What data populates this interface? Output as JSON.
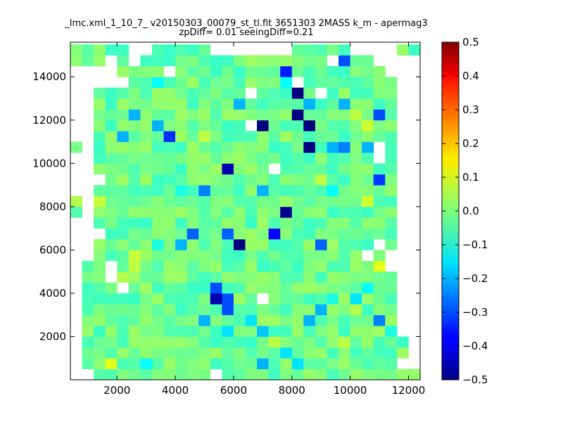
{
  "chart_data": {
    "type": "heatmap",
    "title": "_lmc.xml_1_10_7_ v20150303_00079_st_tl.fit 3651303 2MASS k_m - apermag3",
    "subtitle": "zpDiff= 0.01 seeingDiff=0.21",
    "xlim": [
      400,
      12400
    ],
    "ylim": [
      0,
      15600
    ],
    "x_ticks": [
      2000,
      4000,
      6000,
      8000,
      10000,
      12000
    ],
    "y_ticks": [
      2000,
      4000,
      6000,
      8000,
      10000,
      12000,
      14000
    ],
    "colorbar": {
      "colormap": "jet",
      "range": [
        -0.5,
        0.5
      ],
      "ticks": [
        "0.5",
        "0.4",
        "0.3",
        "0.2",
        "0.1",
        "0.0",
        "−0.1",
        "−0.2",
        "−0.3",
        "−0.4",
        "−0.5"
      ],
      "tick_values": [
        0.5,
        0.4,
        0.3,
        0.2,
        0.1,
        0.0,
        -0.1,
        -0.2,
        -0.3,
        -0.4,
        -0.5
      ]
    },
    "grid": {
      "x0": 400,
      "x_step": 400,
      "n_cols": 30,
      "y0": 0,
      "y_step": 500,
      "n_rows": 31,
      "background_value": -0.02,
      "background_variation": 0.05,
      "missing_cells": [
        [
          1,
          0
        ],
        [
          12,
          0
        ],
        [
          29,
          1
        ],
        [
          28,
          1
        ],
        [
          30,
          20
        ],
        [
          30,
          0
        ],
        [
          30,
          1
        ],
        [
          0,
          0
        ],
        [
          0,
          1
        ],
        [
          0,
          2
        ],
        [
          0,
          3
        ],
        [
          0,
          4
        ],
        [
          0,
          5
        ],
        [
          0,
          6
        ],
        [
          0,
          7
        ],
        [
          0,
          8
        ],
        [
          0,
          9
        ],
        [
          0,
          10
        ],
        [
          0,
          11
        ],
        [
          0,
          12
        ],
        [
          0,
          13
        ],
        [
          0,
          14
        ],
        [
          0,
          17
        ],
        [
          0,
          18
        ],
        [
          0,
          19
        ],
        [
          0,
          20
        ],
        [
          0,
          22
        ],
        [
          0,
          23
        ],
        [
          0,
          24
        ],
        [
          0,
          25
        ],
        [
          0,
          26
        ],
        [
          0,
          27
        ],
        [
          0,
          28
        ],
        [
          1,
          28
        ],
        [
          1,
          27
        ],
        [
          1,
          26
        ],
        [
          1,
          25
        ],
        [
          1,
          24
        ],
        [
          1,
          23
        ],
        [
          1,
          22
        ],
        [
          1,
          21
        ],
        [
          1,
          20
        ],
        [
          1,
          19
        ],
        [
          1,
          18
        ],
        [
          1,
          17
        ],
        [
          1,
          16
        ],
        [
          1,
          15
        ],
        [
          1,
          14
        ],
        [
          1,
          13
        ],
        [
          1,
          12
        ],
        [
          1,
          11
        ],
        [
          2,
          28
        ],
        [
          2,
          27
        ],
        [
          2,
          18
        ],
        [
          2,
          13
        ],
        [
          3,
          29
        ],
        [
          3,
          28
        ],
        [
          3,
          27
        ],
        [
          3,
          10
        ],
        [
          3,
          9
        ],
        [
          29,
          29
        ],
        [
          29,
          28
        ],
        [
          29,
          27
        ],
        [
          29,
          26
        ],
        [
          29,
          25
        ],
        [
          29,
          24
        ],
        [
          29,
          23
        ],
        [
          29,
          22
        ],
        [
          29,
          21
        ],
        [
          29,
          20
        ],
        [
          29,
          19
        ],
        [
          29,
          18
        ],
        [
          29,
          17
        ],
        [
          29,
          16
        ],
        [
          29,
          15
        ],
        [
          29,
          14
        ],
        [
          29,
          13
        ],
        [
          29,
          12
        ],
        [
          29,
          11
        ],
        [
          29,
          10
        ],
        [
          29,
          9
        ],
        [
          29,
          8
        ],
        [
          29,
          7
        ],
        [
          29,
          6
        ],
        [
          29,
          5
        ],
        [
          29,
          4
        ],
        [
          29,
          3
        ],
        [
          29,
          2
        ],
        [
          28,
          29
        ],
        [
          28,
          28
        ],
        [
          28,
          27
        ],
        [
          28,
          26
        ],
        [
          28,
          25
        ],
        [
          28,
          24
        ],
        [
          28,
          23
        ],
        [
          28,
          22
        ],
        [
          28,
          21
        ],
        [
          28,
          20
        ],
        [
          28,
          19
        ],
        [
          28,
          18
        ],
        [
          28,
          17
        ],
        [
          28,
          16
        ],
        [
          28,
          15
        ],
        [
          28,
          14
        ],
        [
          28,
          13
        ],
        [
          28,
          12
        ],
        [
          28,
          11
        ],
        [
          28,
          10
        ],
        [
          28,
          9
        ],
        [
          28,
          8
        ],
        [
          28,
          7
        ],
        [
          28,
          6
        ],
        [
          28,
          5
        ],
        [
          28,
          4
        ],
        [
          27,
          29
        ],
        [
          27,
          28
        ],
        [
          27,
          11
        ],
        [
          27,
          10
        ],
        [
          26,
          29
        ],
        [
          26,
          20
        ],
        [
          26,
          12
        ],
        [
          5,
          30
        ],
        [
          5,
          29
        ],
        [
          6,
          30
        ],
        [
          12,
          30
        ],
        [
          13,
          30
        ],
        [
          14,
          30
        ],
        [
          15,
          30
        ],
        [
          16,
          30
        ],
        [
          17,
          30
        ],
        [
          18,
          30
        ],
        [
          24,
          30
        ],
        [
          25,
          30
        ],
        [
          26,
          30
        ],
        [
          27,
          30
        ],
        [
          4,
          27
        ],
        [
          4,
          8
        ],
        [
          8,
          28
        ],
        [
          15,
          23
        ],
        [
          15,
          26
        ],
        [
          16,
          7
        ],
        [
          17,
          19
        ],
        [
          19,
          27
        ],
        [
          21,
          26
        ],
        [
          22,
          29
        ],
        [
          25,
          11
        ],
        [
          26,
          21
        ]
      ],
      "highlight_cells": [
        {
          "col": 3,
          "row": 1,
          "value": 0.1
        },
        {
          "col": 0,
          "row": 8,
          "value": 0.08
        },
        {
          "col": 0,
          "row": 16,
          "value": 0.05
        },
        {
          "col": 18,
          "row": 15,
          "value": -0.48
        },
        {
          "col": 17,
          "row": 13,
          "value": -0.38
        },
        {
          "col": 14,
          "row": 12,
          "value": -0.5
        },
        {
          "col": 13,
          "row": 13,
          "value": -0.28
        },
        {
          "col": 21,
          "row": 12,
          "value": -0.28
        },
        {
          "col": 10,
          "row": 13,
          "value": -0.28
        },
        {
          "col": 5,
          "row": 11,
          "value": 0.07
        },
        {
          "col": 26,
          "row": 10,
          "value": 0.1
        },
        {
          "col": 28,
          "row": 10,
          "value": 0.18
        },
        {
          "col": 28,
          "row": 12,
          "value": -0.2
        },
        {
          "col": 16,
          "row": 4,
          "value": -0.18
        },
        {
          "col": 24,
          "row": 6,
          "value": 0.05
        },
        {
          "col": 8,
          "row": 22,
          "value": -0.33
        },
        {
          "col": 7,
          "row": 23,
          "value": -0.2
        },
        {
          "col": 4,
          "row": 22,
          "value": -0.2
        },
        {
          "col": 5,
          "row": 24,
          "value": -0.2
        },
        {
          "col": 11,
          "row": 17,
          "value": -0.25
        },
        {
          "col": 13,
          "row": 19,
          "value": -0.45
        },
        {
          "col": 9,
          "row": 17,
          "value": -0.1
        },
        {
          "col": 23,
          "row": 21,
          "value": -0.25
        },
        {
          "col": 26,
          "row": 18,
          "value": -0.32
        },
        {
          "col": 25,
          "row": 23,
          "value": 0.08
        },
        {
          "col": 11,
          "row": 22,
          "value": 0.06
        },
        {
          "col": 16,
          "row": 23,
          "value": -0.5
        },
        {
          "col": 20,
          "row": 23,
          "value": -0.5
        },
        {
          "col": 26,
          "row": 24,
          "value": -0.3
        },
        {
          "col": 25,
          "row": 21,
          "value": -0.2
        },
        {
          "col": 23,
          "row": 29,
          "value": -0.3
        },
        {
          "col": 7,
          "row": 27,
          "value": -0.12
        },
        {
          "col": 18,
          "row": 27,
          "value": -0.12
        },
        {
          "col": 19,
          "row": 26,
          "value": -0.5
        },
        {
          "col": 18,
          "row": 28,
          "value": -0.35
        },
        {
          "col": 19,
          "row": 24,
          "value": -0.5
        },
        {
          "col": 20,
          "row": 21,
          "value": -0.6
        },
        {
          "col": 22,
          "row": 21,
          "value": -0.2
        },
        {
          "col": 17,
          "row": 19,
          "value": -0.2
        },
        {
          "col": 16,
          "row": 17,
          "value": -0.2
        },
        {
          "col": 22,
          "row": 17,
          "value": -0.12
        },
        {
          "col": 23,
          "row": 25,
          "value": -0.2
        },
        {
          "col": 29,
          "row": 24,
          "value": 0.08
        },
        {
          "col": 28,
          "row": 26,
          "value": -0.3
        },
        {
          "col": 14,
          "row": 25,
          "value": -0.2
        },
        {
          "col": 25,
          "row": 16,
          "value": 0.08
        },
        {
          "col": 13,
          "row": 6,
          "value": -0.3
        },
        {
          "col": 11,
          "row": 5,
          "value": -0.2
        },
        {
          "col": 12,
          "row": 7,
          "value": -0.45
        },
        {
          "col": 12,
          "row": 8,
          "value": -0.3
        },
        {
          "col": 13,
          "row": 7,
          "value": -0.3
        },
        {
          "col": 15,
          "row": 5,
          "value": -0.15
        },
        {
          "col": 13,
          "row": 4,
          "value": -0.15
        },
        {
          "col": 17,
          "row": 3,
          "value": 0.06
        },
        {
          "col": 23,
          "row": 3,
          "value": 0.06
        },
        {
          "col": 18,
          "row": 2,
          "value": -0.15
        },
        {
          "col": 20,
          "row": 5,
          "value": -0.2
        },
        {
          "col": 21,
          "row": 6,
          "value": -0.2
        },
        {
          "col": 22,
          "row": 7,
          "value": -0.1
        },
        {
          "col": 24,
          "row": 7,
          "value": -0.15
        },
        {
          "col": 25,
          "row": 8,
          "value": -0.12
        },
        {
          "col": 26,
          "row": 5,
          "value": -0.25
        },
        {
          "col": 27,
          "row": 4,
          "value": -0.1
        },
        {
          "col": 16,
          "row": 1,
          "value": -0.2
        },
        {
          "col": 19,
          "row": 1,
          "value": -0.15
        },
        {
          "col": 6,
          "row": 1,
          "value": -0.12
        },
        {
          "col": 9,
          "row": 12,
          "value": -0.2
        },
        {
          "col": 7,
          "row": 12,
          "value": -0.1
        },
        {
          "col": 5,
          "row": 10,
          "value": 0.06
        },
        {
          "col": 2,
          "row": 16,
          "value": 0.07
        },
        {
          "col": 1,
          "row": 20,
          "value": 0.06
        },
        {
          "col": 4,
          "row": 9,
          "value": 0.05
        },
        {
          "col": 21,
          "row": 18,
          "value": 0.06
        },
        {
          "col": 20,
          "row": 25,
          "value": -0.2
        },
        {
          "col": 24,
          "row": 24,
          "value": 0.06
        }
      ]
    }
  }
}
